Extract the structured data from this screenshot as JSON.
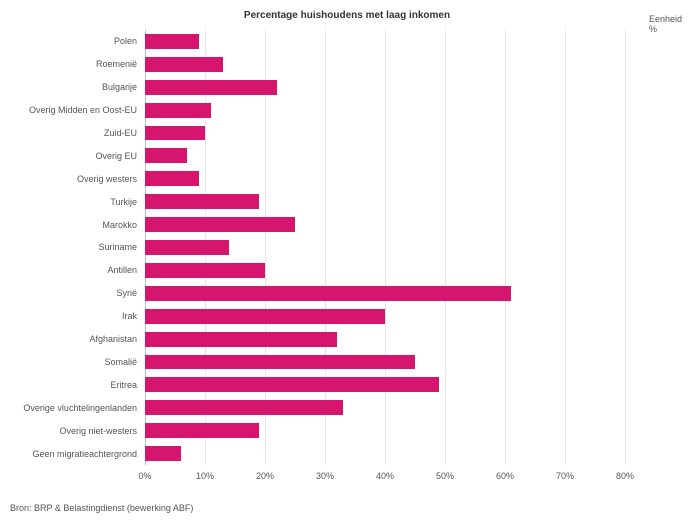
{
  "chart": {
    "type": "bar",
    "title": "Percentage huishoudens met laag inkomen",
    "legend_title": "Eenheid",
    "legend_unit": "%",
    "categories": [
      "Polen",
      "Roemenië",
      "Bulgarije",
      "Overig Midden en Oost-EU",
      "Zuid-EU",
      "Overig EU",
      "Overig westers",
      "Turkije",
      "Marokko",
      "Suriname",
      "Antillen",
      "Syrië",
      "Irak",
      "Afghanistan",
      "Somalië",
      "Eritrea",
      "Overige vluchtelingenlanden",
      "Overig niet-westers",
      "Geen migratieachtergrond"
    ],
    "values": [
      9,
      13,
      22,
      11,
      10,
      7,
      9,
      19,
      25,
      14,
      20,
      61,
      40,
      32,
      45,
      49,
      33,
      19,
      6
    ],
    "bar_color": "#d6156f",
    "grid_color": "#e6e6e6",
    "background_color": "#ffffff",
    "x_axis": {
      "min": 0,
      "max": 80,
      "tick_step": 10,
      "suffix": "%"
    },
    "source": "Bron: BRP & Belastingdienst (bewerking ABF)"
  }
}
